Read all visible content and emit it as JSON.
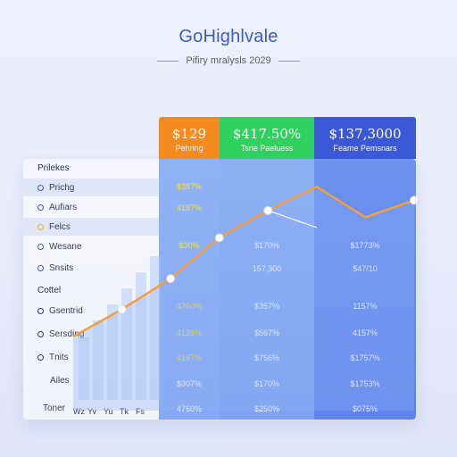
{
  "header": {
    "title": "GoHighlvale",
    "subtitle": "Pifiry mralysls 2029"
  },
  "columns": [
    {
      "value": "$129",
      "label": "Pehring",
      "color": "#f58a1f"
    },
    {
      "value": "$417.50%",
      "label": "Tsrie Paeluess",
      "color": "#2fd25f"
    },
    {
      "value": "$137,3000",
      "label": "Feame Pemsnars",
      "color": "#3b58d8"
    }
  ],
  "sections": {
    "first": "Prilekes",
    "second": "Cottel"
  },
  "rows_top": [
    {
      "label": "Prichg",
      "dot": "blue"
    },
    {
      "label": "Aufiars",
      "dot": "blue"
    },
    {
      "label": "Felcs",
      "dot": "yellow"
    },
    {
      "label": "Wesane",
      "dot": "blue"
    },
    {
      "label": "Snsits",
      "dot": "blue"
    }
  ],
  "rows_bottom": [
    {
      "label": "Gsentrid",
      "dot": "dark"
    },
    {
      "label": "Sersding",
      "dot": "dark"
    },
    {
      "label": "Tnits",
      "dot": "dark"
    },
    {
      "label": "Ailes",
      "dot": ""
    },
    {
      "label": "Toner",
      "dot": ""
    }
  ],
  "table_values": {
    "col1": [
      "$387%",
      "4187%",
      "$30%",
      "4760%",
      "4126%",
      "4167%",
      "$307%",
      "4760%"
    ],
    "col2": [
      "",
      "",
      "$170%",
      "157,300",
      "$357%",
      "$567%",
      "$756%",
      "$170%",
      "$250%"
    ],
    "col3": [
      "",
      "",
      "$1773%",
      "$47/10",
      "1157%",
      "4157%",
      "$1757%",
      "$1753%",
      "$075%"
    ]
  },
  "x_ticks": [
    "Wz",
    "Yv",
    "Yu",
    "Tk",
    "Fs"
  ],
  "chart_data": {
    "type": "line",
    "title": "",
    "x": [
      1,
      2,
      3,
      4,
      5,
      6,
      7,
      8
    ],
    "series": [
      {
        "values": [
          12,
          28,
          46,
          70,
          86,
          100,
          82,
          92
        ],
        "color": "#f0a040"
      },
      {
        "values": [
          null,
          null,
          null,
          null,
          86,
          76,
          null,
          null
        ],
        "color": "#ffffff"
      }
    ],
    "ylim": [
      0,
      110
    ],
    "grid": false
  },
  "colors": {
    "accent": "#3d5dbf",
    "line": "#f0a040"
  }
}
